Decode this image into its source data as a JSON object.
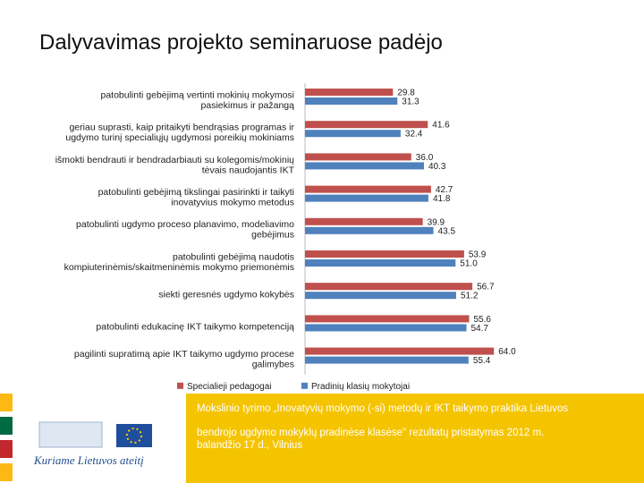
{
  "slide": {
    "title": "Dalyvavimas projekto seminaruose padėjo"
  },
  "chart_data": {
    "type": "bar",
    "orientation": "horizontal",
    "categories": [
      [
        "patobulinti gebėjimą vertinti mokinių mokymosi",
        "pasiekimus ir pažangą"
      ],
      [
        "geriau suprasti, kaip pritaikyti bendrąsias programas ir",
        "ugdymo turinį specialiųjų ugdymosi poreikių mokiniams"
      ],
      [
        "išmokti bendrauti ir bendradarbiauti su kolegomis/mokinių",
        "tėvais naudojantis IKT"
      ],
      [
        "patobulinti gebėjimą tikslingai pasirinkti ir taikyti",
        "inovatyvius mokymo metodus"
      ],
      [
        "patobulinti ugdymo proceso planavimo, modeliavimo",
        "gebėjimus"
      ],
      [
        "patobulinti gebėjimą naudotis",
        "kompiuterinėmis/skaitmeninėmis mokymo priemonėmis"
      ],
      [
        "siekti geresnės ugdymo kokybės"
      ],
      [
        "patobulinti edukacinę IKT taikymo kompetenciją"
      ],
      [
        "pagilinti supratimą apie IKT taikymo ugdymo procese",
        "galimybes"
      ]
    ],
    "series": [
      {
        "name": "Specialieji pedagogai",
        "color": "#c0504d",
        "values": [
          29.8,
          41.6,
          36.0,
          42.7,
          39.9,
          53.9,
          56.7,
          55.6,
          64.0
        ]
      },
      {
        "name": "Pradinių klasių mokytojai",
        "color": "#4f81bd",
        "values": [
          31.3,
          32.4,
          40.3,
          41.8,
          43.5,
          51.0,
          51.2,
          54.7,
          55.4
        ]
      }
    ],
    "value_labels": [
      [
        "29.8",
        "41.6",
        "36.0",
        "42.7",
        "39.9",
        "53.9",
        "56.7",
        "55.6",
        "64.0"
      ],
      [
        "31.3",
        "32.4",
        "40.3",
        "41.8",
        "43.5",
        "51.0",
        "51.2",
        "54.7",
        "55.4"
      ]
    ],
    "xlim": [
      0,
      100
    ],
    "legend_position": "bottom",
    "grid": false
  },
  "footer": {
    "logo_text": "Kuriame Lietuvos ateitį",
    "caption_line1": "Mokslinio tyrimo „Inovatyvių mokymo (-si) metodų ir IKT taikymo praktika Lietuvos",
    "caption_line2": "bendrojo ugdymo mokyklų pradinėse klasėse\" rezultatų pristatymas 2012 m.",
    "caption_line3": "balandžio 17 d., Vilnius",
    "colors": {
      "band": "#f5c400",
      "stripe_yellow": "#fdb913",
      "stripe_green": "#006a44",
      "stripe_red": "#c1272d"
    }
  }
}
